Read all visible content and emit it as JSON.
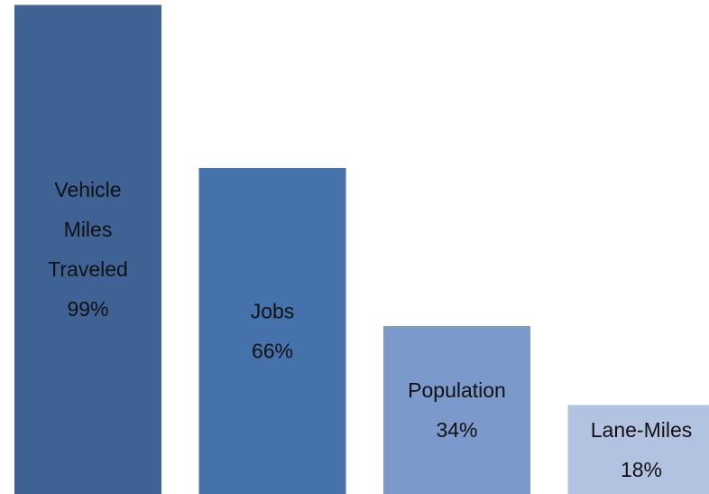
{
  "chart_data": {
    "type": "bar",
    "title": "",
    "xlabel": "",
    "ylabel": "",
    "ylim": [
      0,
      100
    ],
    "grid": false,
    "legend": "none",
    "categories": [
      "Vehicle Miles Traveled",
      "Jobs",
      "Population",
      "Lane-Miles"
    ],
    "values": [
      99,
      66,
      34,
      18
    ],
    "data_labels": [
      [
        "Vehicle",
        "Miles",
        "Traveled",
        "99%"
      ],
      [
        "Jobs",
        "66%"
      ],
      [
        "Population",
        "34%"
      ],
      [
        "Lane-Miles",
        "18%"
      ]
    ],
    "colors": [
      "#3e6294",
      "#4572ab",
      "#7b9acb",
      "#b2c2e1"
    ]
  }
}
